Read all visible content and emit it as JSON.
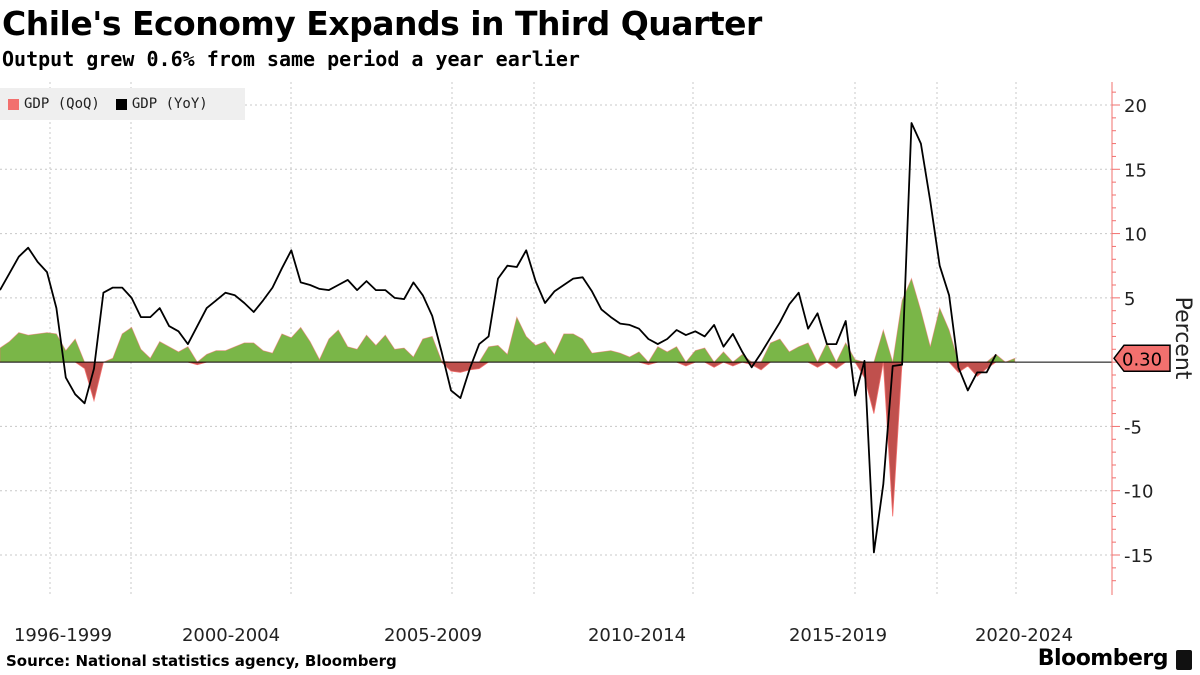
{
  "header": {
    "title": "Chile's Economy Expands in Third Quarter",
    "subtitle": "Output grew 0.6% from same period a year earlier"
  },
  "legend": {
    "qoq_label": "GDP (QoQ)",
    "yoy_label": "GDP (YoY)"
  },
  "footer": {
    "source": "Source: National statistics agency, Bloomberg",
    "brand": "Bloomberg"
  },
  "colors": {
    "positive": "#7ab648",
    "negative": "#c0504d",
    "qoq_swatch": "#f2706e",
    "yoy_line": "#000000",
    "axis": "#f2706e",
    "grid": "#c8c8c8"
  },
  "chart_data": {
    "type": "area+line",
    "title": "Chile's Economy Expands in Third Quarter",
    "subtitle": "Output grew 0.6% from same period a year earlier",
    "ylabel": "Percent",
    "ylim": [
      -18,
      22
    ],
    "yticks": [
      -15,
      -10,
      -5,
      0,
      5,
      10,
      15,
      20
    ],
    "xlim": [
      1996.0,
      2025.0
    ],
    "x_labels": [
      "1996-1999",
      "2000-2004",
      "2005-2009",
      "2010-2014",
      "2015-2019",
      "2020-2024"
    ],
    "last_value_label": "0.30",
    "last_value": 0.3,
    "series": [
      {
        "name": "GDP (QoQ)",
        "kind": "area",
        "points": [
          [
            1996.0,
            1.1
          ],
          [
            1996.25,
            1.6
          ],
          [
            1996.5,
            2.3
          ],
          [
            1996.75,
            2.1
          ],
          [
            1997.0,
            2.2
          ],
          [
            1997.25,
            2.3
          ],
          [
            1997.5,
            2.2
          ],
          [
            1997.75,
            0.9
          ],
          [
            1998.0,
            1.8
          ],
          [
            1998.25,
            -0.5
          ],
          [
            1998.5,
            -3.0
          ],
          [
            1998.75,
            0.0
          ],
          [
            1999.0,
            0.3
          ],
          [
            1999.25,
            2.2
          ],
          [
            1999.5,
            2.7
          ],
          [
            1999.75,
            1.0
          ],
          [
            2000.0,
            0.3
          ],
          [
            2000.25,
            1.6
          ],
          [
            2000.5,
            1.2
          ],
          [
            2000.75,
            0.8
          ],
          [
            2001.0,
            1.2
          ],
          [
            2001.25,
            -0.2
          ],
          [
            2001.5,
            0.6
          ],
          [
            2001.75,
            0.9
          ],
          [
            2002.0,
            0.9
          ],
          [
            2002.25,
            1.2
          ],
          [
            2002.5,
            1.5
          ],
          [
            2002.75,
            1.5
          ],
          [
            2003.0,
            0.9
          ],
          [
            2003.25,
            0.7
          ],
          [
            2003.5,
            2.2
          ],
          [
            2003.75,
            1.9
          ],
          [
            2004.0,
            2.7
          ],
          [
            2004.25,
            1.6
          ],
          [
            2004.5,
            0.2
          ],
          [
            2004.75,
            1.8
          ],
          [
            2005.0,
            2.5
          ],
          [
            2005.25,
            1.2
          ],
          [
            2005.5,
            1.0
          ],
          [
            2005.75,
            2.1
          ],
          [
            2006.0,
            1.3
          ],
          [
            2006.25,
            2.1
          ],
          [
            2006.5,
            1.0
          ],
          [
            2006.75,
            1.1
          ],
          [
            2007.0,
            0.4
          ],
          [
            2007.25,
            1.8
          ],
          [
            2007.5,
            2.0
          ],
          [
            2007.75,
            0.1
          ],
          [
            2008.0,
            -0.7
          ],
          [
            2008.25,
            -0.8
          ],
          [
            2008.5,
            -0.6
          ],
          [
            2008.75,
            -0.5
          ],
          [
            2009.0,
            1.2
          ],
          [
            2009.25,
            1.3
          ],
          [
            2009.5,
            0.6
          ],
          [
            2009.75,
            3.5
          ],
          [
            2010.0,
            2.0
          ],
          [
            2010.25,
            1.3
          ],
          [
            2010.5,
            1.6
          ],
          [
            2010.75,
            0.6
          ],
          [
            2011.0,
            2.2
          ],
          [
            2011.25,
            2.2
          ],
          [
            2011.5,
            1.8
          ],
          [
            2011.75,
            0.7
          ],
          [
            2012.0,
            0.8
          ],
          [
            2012.25,
            0.9
          ],
          [
            2012.5,
            0.7
          ],
          [
            2012.75,
            0.4
          ],
          [
            2013.0,
            0.8
          ],
          [
            2013.25,
            -0.2
          ],
          [
            2013.5,
            1.2
          ],
          [
            2013.75,
            0.8
          ],
          [
            2014.0,
            1.2
          ],
          [
            2014.25,
            -0.3
          ],
          [
            2014.5,
            0.9
          ],
          [
            2014.75,
            1.1
          ],
          [
            2015.0,
            -0.4
          ],
          [
            2015.25,
            0.8
          ],
          [
            2015.5,
            -0.3
          ],
          [
            2015.75,
            0.6
          ],
          [
            2016.0,
            -0.2
          ],
          [
            2016.25,
            -0.6
          ],
          [
            2016.5,
            1.5
          ],
          [
            2016.75,
            1.8
          ],
          [
            2017.0,
            0.8
          ],
          [
            2017.25,
            1.2
          ],
          [
            2017.5,
            1.5
          ],
          [
            2017.75,
            -0.4
          ],
          [
            2018.0,
            1.5
          ],
          [
            2018.25,
            -0.5
          ],
          [
            2018.5,
            1.5
          ],
          [
            2018.75,
            0.2
          ],
          [
            2019.0,
            -1.2
          ],
          [
            2019.25,
            -4.0
          ],
          [
            2019.5,
            2.5
          ],
          [
            2019.75,
            -12.0
          ],
          [
            2020.0,
            4.8
          ],
          [
            2020.25,
            6.5
          ],
          [
            2020.5,
            4.0
          ],
          [
            2020.75,
            1.2
          ],
          [
            2021.0,
            4.2
          ],
          [
            2021.25,
            2.5
          ],
          [
            2021.5,
            -0.8
          ],
          [
            2021.75,
            -0.3
          ],
          [
            2022.0,
            -1.1
          ],
          [
            2022.25,
            -0.5
          ],
          [
            2022.5,
            0.6
          ],
          [
            2022.75,
            0.0
          ],
          [
            2023.0,
            0.3
          ]
        ]
      },
      {
        "name": "GDP (YoY)",
        "kind": "line",
        "points": [
          [
            1996.0,
            5.6
          ],
          [
            1996.25,
            6.9
          ],
          [
            1996.5,
            8.2
          ],
          [
            1996.75,
            8.9
          ],
          [
            1997.0,
            7.8
          ],
          [
            1997.25,
            7.0
          ],
          [
            1997.5,
            4.2
          ],
          [
            1997.75,
            -1.2
          ],
          [
            1998.0,
            -2.5
          ],
          [
            1998.25,
            -3.2
          ],
          [
            1998.5,
            -0.5
          ],
          [
            1998.75,
            5.4
          ],
          [
            1999.0,
            5.8
          ],
          [
            1999.25,
            5.8
          ],
          [
            1999.5,
            5.0
          ],
          [
            1999.75,
            3.5
          ],
          [
            2000.0,
            3.5
          ],
          [
            2000.25,
            4.2
          ],
          [
            2000.5,
            2.8
          ],
          [
            2000.75,
            2.4
          ],
          [
            2001.0,
            1.4
          ],
          [
            2001.25,
            2.8
          ],
          [
            2001.5,
            4.2
          ],
          [
            2001.75,
            4.8
          ],
          [
            2002.0,
            5.4
          ],
          [
            2002.25,
            5.2
          ],
          [
            2002.5,
            4.6
          ],
          [
            2002.75,
            3.9
          ],
          [
            2003.0,
            4.8
          ],
          [
            2003.25,
            5.8
          ],
          [
            2003.5,
            7.3
          ],
          [
            2003.75,
            8.7
          ],
          [
            2004.0,
            6.2
          ],
          [
            2004.25,
            6.0
          ],
          [
            2004.5,
            5.7
          ],
          [
            2004.75,
            5.6
          ],
          [
            2005.0,
            6.0
          ],
          [
            2005.25,
            6.4
          ],
          [
            2005.5,
            5.6
          ],
          [
            2005.75,
            6.3
          ],
          [
            2006.0,
            5.6
          ],
          [
            2006.25,
            5.6
          ],
          [
            2006.5,
            5.0
          ],
          [
            2006.75,
            4.9
          ],
          [
            2007.0,
            6.2
          ],
          [
            2007.25,
            5.2
          ],
          [
            2007.5,
            3.6
          ],
          [
            2007.75,
            0.8
          ],
          [
            2008.0,
            -2.2
          ],
          [
            2008.25,
            -2.8
          ],
          [
            2008.5,
            -0.5
          ],
          [
            2008.75,
            1.4
          ],
          [
            2009.0,
            2.0
          ],
          [
            2009.25,
            6.5
          ],
          [
            2009.5,
            7.5
          ],
          [
            2009.75,
            7.4
          ],
          [
            2010.0,
            8.7
          ],
          [
            2010.25,
            6.3
          ],
          [
            2010.5,
            4.6
          ],
          [
            2010.75,
            5.5
          ],
          [
            2011.0,
            6.0
          ],
          [
            2011.25,
            6.5
          ],
          [
            2011.5,
            6.6
          ],
          [
            2011.75,
            5.5
          ],
          [
            2012.0,
            4.1
          ],
          [
            2012.25,
            3.5
          ],
          [
            2012.5,
            3.0
          ],
          [
            2012.75,
            2.9
          ],
          [
            2013.0,
            2.6
          ],
          [
            2013.25,
            1.8
          ],
          [
            2013.5,
            1.4
          ],
          [
            2013.75,
            1.8
          ],
          [
            2014.0,
            2.5
          ],
          [
            2014.25,
            2.1
          ],
          [
            2014.5,
            2.4
          ],
          [
            2014.75,
            2.0
          ],
          [
            2015.0,
            2.9
          ],
          [
            2015.25,
            1.2
          ],
          [
            2015.5,
            2.2
          ],
          [
            2015.75,
            0.8
          ],
          [
            2016.0,
            -0.4
          ],
          [
            2016.25,
            0.7
          ],
          [
            2016.5,
            1.9
          ],
          [
            2016.75,
            3.1
          ],
          [
            2017.0,
            4.5
          ],
          [
            2017.25,
            5.4
          ],
          [
            2017.5,
            2.6
          ],
          [
            2017.75,
            3.8
          ],
          [
            2018.0,
            1.4
          ],
          [
            2018.25,
            1.4
          ],
          [
            2018.5,
            3.2
          ],
          [
            2018.75,
            -2.6
          ],
          [
            2019.0,
            0.1
          ],
          [
            2019.25,
            -14.8
          ],
          [
            2019.5,
            -9.5
          ],
          [
            2019.75,
            -0.3
          ],
          [
            2020.0,
            -0.2
          ],
          [
            2020.25,
            18.6
          ],
          [
            2020.5,
            17.0
          ],
          [
            2020.75,
            12.5
          ],
          [
            2021.0,
            7.5
          ],
          [
            2021.25,
            5.2
          ],
          [
            2021.5,
            -0.4
          ],
          [
            2021.75,
            -2.2
          ],
          [
            2022.0,
            -0.8
          ],
          [
            2022.25,
            -0.8
          ],
          [
            2022.5,
            0.6
          ]
        ]
      }
    ]
  }
}
